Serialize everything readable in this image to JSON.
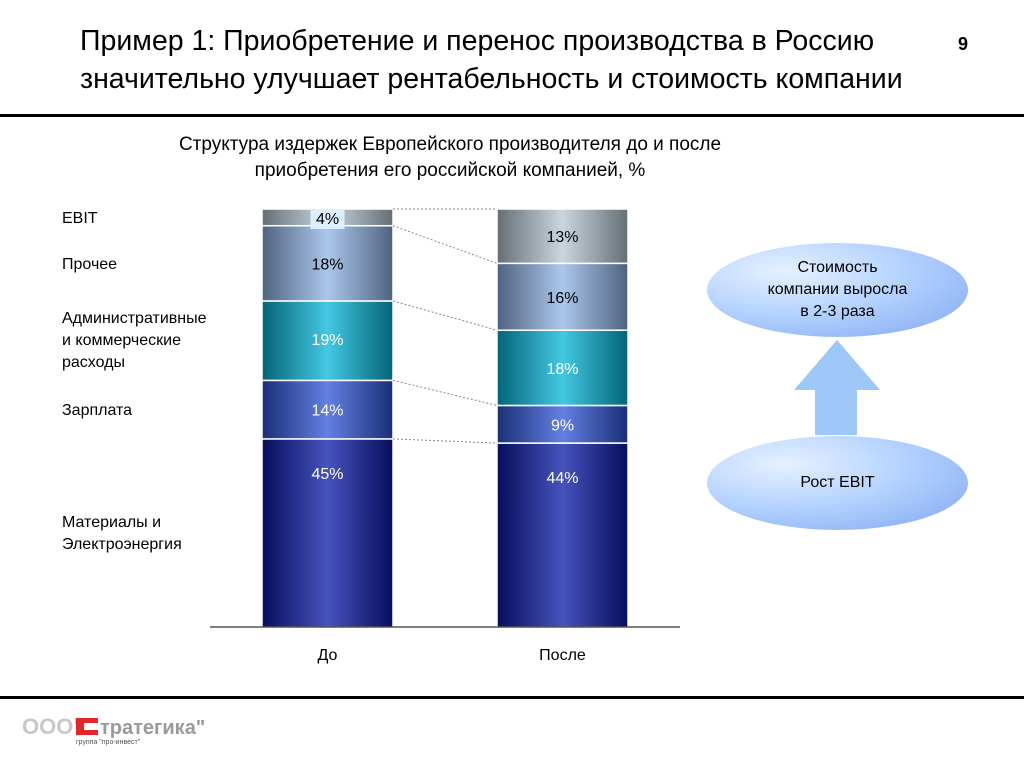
{
  "header": {
    "title_line1": "Пример 1: Приобретение и перенос производства в Россию",
    "title_line2": "значительно улучшает рентабельность  и стоимость компании",
    "page_number": "9"
  },
  "chart_data": {
    "type": "bar",
    "stacked": true,
    "title": "Структура издержек Европейского производителя до и после приобретения его российской компанией, %",
    "title_line1": "Структура издержек Европейского производителя до и после",
    "title_line2": "приобретения его российской компанией, %",
    "categories": [
      "До",
      "После"
    ],
    "series": [
      {
        "name": "Материалы и Электроэнергия",
        "label_lines": [
          "Материалы и",
          "Электроэнергия"
        ],
        "values": [
          45,
          44
        ],
        "labels": [
          "45%",
          "44%"
        ],
        "color": "#0a1aa8",
        "text": "#fff"
      },
      {
        "name": "Зарплата",
        "label_lines": [
          "Зарплата"
        ],
        "values": [
          14,
          9
        ],
        "labels": [
          "14%",
          "9%"
        ],
        "color": "#2f55d8",
        "text": "#fff"
      },
      {
        "name": "Административные и коммерческие расходы",
        "label_lines": [
          "Административные",
          "и коммерческие",
          "расходы"
        ],
        "values": [
          19,
          18
        ],
        "labels": [
          "19%",
          "18%"
        ],
        "color": "#06b6d8",
        "text": "#fff"
      },
      {
        "name": "Прочее",
        "label_lines": [
          "Прочее"
        ],
        "values": [
          18,
          16
        ],
        "labels": [
          "18%",
          "16%"
        ],
        "color": "#8fb4e6",
        "text": "#000"
      },
      {
        "name": "EBIT",
        "label_lines": [
          "EBIT"
        ],
        "values": [
          4,
          13
        ],
        "labels": [
          "4%",
          "13%"
        ],
        "color": "#b8c8d4",
        "text": "#000"
      }
    ],
    "ylim": [
      0,
      100
    ]
  },
  "callouts": {
    "top": [
      "Стоимость",
      "компании выросла",
      "в 2-3 раза"
    ],
    "bottom": "Рост EBIT"
  },
  "footer": {
    "logo_text": "ООО \"Стратегика\"",
    "logo_sub": "группа \"про-инвест\""
  }
}
